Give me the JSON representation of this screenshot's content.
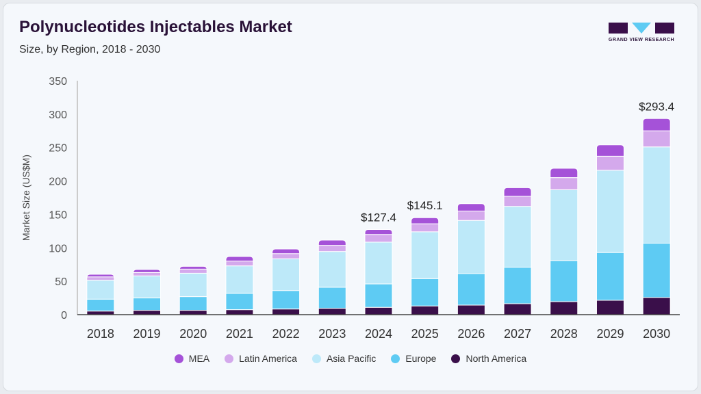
{
  "header": {
    "title": "Polynucleotides Injectables Market",
    "subtitle": "Size, by Region, 2018 - 2030",
    "logo_text": "GRAND VIEW RESEARCH"
  },
  "chart_data": {
    "type": "bar",
    "stacked": true,
    "title": "Polynucleotides Injectables Market",
    "subtitle": "Size, by Region, 2018 - 2030",
    "xlabel": "",
    "ylabel": "Market Size (US$M)",
    "ylim": [
      0,
      350
    ],
    "yticks": [
      0,
      50,
      100,
      150,
      200,
      250,
      300,
      350
    ],
    "grid": false,
    "legend_position": "bottom",
    "categories": [
      "2018",
      "2019",
      "2020",
      "2021",
      "2022",
      "2023",
      "2024",
      "2025",
      "2026",
      "2027",
      "2028",
      "2029",
      "2030"
    ],
    "series": [
      {
        "name": "North America",
        "color": "#3a0f4a",
        "values": [
          5.4,
          6.5,
          6.5,
          7.5,
          8.5,
          9.5,
          11,
          13,
          14.3,
          16.4,
          19.5,
          21.5,
          25.6
        ]
      },
      {
        "name": "Europe",
        "color": "#5ecbf3",
        "values": [
          17.8,
          18.5,
          20.5,
          24.5,
          27.6,
          31.5,
          35,
          41,
          47.1,
          54.6,
          61.5,
          71.5,
          81.4
        ]
      },
      {
        "name": "Asia Pacific",
        "color": "#bde9f9",
        "values": [
          28.3,
          33,
          35,
          41,
          47.5,
          53.5,
          62.5,
          70,
          79.6,
          91,
          106,
          123,
          144
        ]
      },
      {
        "name": "Latin America",
        "color": "#d4a9ec",
        "values": [
          5.1,
          5.1,
          6.2,
          7.2,
          7.8,
          9.2,
          11.5,
          12,
          14,
          15,
          18,
          21,
          24
        ]
      },
      {
        "name": "MEA",
        "color": "#a552d8",
        "values": [
          3.8,
          4.4,
          4.1,
          6.8,
          6.9,
          7.9,
          7.4,
          9.1,
          11,
          13,
          14,
          17,
          18.4
        ]
      }
    ],
    "annotations": [
      {
        "category": "2024",
        "text": "$127.4"
      },
      {
        "category": "2025",
        "text": "$145.1"
      },
      {
        "category": "2030",
        "text": "$293.4"
      }
    ],
    "legend_order": [
      "MEA",
      "Latin America",
      "Asia Pacific",
      "Europe",
      "North America"
    ]
  }
}
